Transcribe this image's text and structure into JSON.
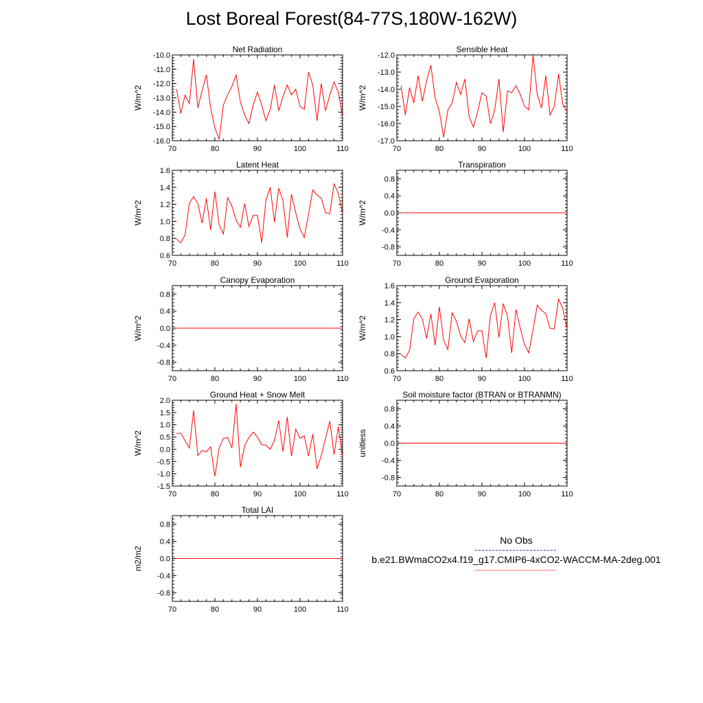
{
  "figure": {
    "title": "Lost Boreal Forest(84-77S,180W-162W)"
  },
  "legend": {
    "entries": [
      {
        "label": "No Obs",
        "color": "#3333aa",
        "dash": "dashed"
      },
      {
        "label": "b.e21.BWmaCO2x4.f19_g17.CMIP6-4xCO2-WACCM-MA-2deg.001",
        "color": "#ff0000",
        "dash": "solid"
      }
    ]
  },
  "colors": {
    "series": "#ff0000",
    "axis": "#000000"
  },
  "chart_data": [
    {
      "type": "line",
      "title": "Net Radiation",
      "ylabel": "W/m^2",
      "xlim": [
        70,
        110
      ],
      "ylim": [
        -16,
        -10
      ],
      "xticks": [
        70,
        80,
        90,
        100,
        110
      ],
      "yticks": [
        -16,
        -15,
        -14,
        -13,
        -12,
        -11,
        -10
      ],
      "ytick_labels": [
        "-16.0",
        "-15.0",
        "-14.0",
        "-13.0",
        "-12.0",
        "-11.0",
        "-10.0"
      ],
      "x_start": 71,
      "series": [
        {
          "values": [
            -12.4,
            -14.1,
            -12.8,
            -13.4,
            -10.3,
            -13.7,
            -12.5,
            -11.4,
            -13.7,
            -15.1,
            -15.9,
            -13.5,
            -12.8,
            -12.2,
            -11.4,
            -13.3,
            -14.2,
            -14.8,
            -13.5,
            -12.6,
            -13.5,
            -14.6,
            -13.8,
            -12.1,
            -13.9,
            -12.9,
            -12.1,
            -12.8,
            -12.4,
            -13.6,
            -13.8,
            -11.2,
            -12.1,
            -14.6,
            -12.0,
            -13.9,
            -12.8,
            -11.9,
            -12.6,
            -14.3
          ]
        }
      ]
    },
    {
      "type": "line",
      "title": "Sensible Heat",
      "ylabel": "W/m^2",
      "xlim": [
        70,
        110
      ],
      "ylim": [
        -17,
        -12
      ],
      "xticks": [
        70,
        80,
        90,
        100,
        110
      ],
      "yticks": [
        -17,
        -16,
        -15,
        -14,
        -13,
        -12
      ],
      "ytick_labels": [
        "-17.0",
        "-16.0",
        "-15.0",
        "-14.0",
        "-13.0",
        "-12.0"
      ],
      "x_start": 71,
      "series": [
        {
          "values": [
            -13.8,
            -15.5,
            -13.9,
            -14.8,
            -13.2,
            -14.7,
            -13.5,
            -12.6,
            -14.5,
            -15.3,
            -16.8,
            -15.2,
            -14.8,
            -13.6,
            -14.3,
            -13.4,
            -15.6,
            -16.2,
            -15.3,
            -14.2,
            -14.4,
            -16.0,
            -15.2,
            -13.4,
            -16.5,
            -14.1,
            -14.2,
            -13.8,
            -14.3,
            -15.0,
            -15.2,
            -12.0,
            -14.3,
            -15.1,
            -13.2,
            -15.5,
            -15.0,
            -13.1,
            -14.9,
            -15.3
          ]
        }
      ]
    },
    {
      "type": "line",
      "title": "Latent Heat",
      "ylabel": "W/m^2",
      "xlim": [
        70,
        110
      ],
      "ylim": [
        0.6,
        1.6
      ],
      "xticks": [
        70,
        80,
        90,
        100,
        110
      ],
      "yticks": [
        0.6,
        0.8,
        1.0,
        1.2,
        1.4,
        1.6
      ],
      "ytick_labels": [
        "0.6",
        "0.8",
        "1.0",
        "1.2",
        "1.4",
        "1.6"
      ],
      "x_start": 71,
      "series": [
        {
          "values": [
            0.79,
            0.75,
            0.84,
            1.21,
            1.29,
            1.21,
            0.98,
            1.27,
            0.9,
            1.35,
            0.96,
            0.85,
            1.28,
            1.18,
            1.01,
            0.93,
            1.21,
            0.94,
            1.07,
            1.07,
            0.75,
            1.25,
            1.4,
            0.99,
            1.39,
            1.24,
            0.81,
            1.32,
            1.1,
            0.91,
            0.81,
            1.08,
            1.37,
            1.31,
            1.27,
            1.1,
            1.09,
            1.44,
            1.33,
            1.09
          ]
        }
      ]
    },
    {
      "type": "line",
      "title": "Transpiration",
      "ylabel": "W/m^2",
      "xlim": [
        70,
        110
      ],
      "ylim": [
        -1,
        1
      ],
      "xticks": [
        70,
        80,
        90,
        100,
        110
      ],
      "yticks": [
        -0.8,
        -0.4,
        0.0,
        0.4,
        0.8
      ],
      "ytick_labels": [
        "-0.8",
        "-0.4",
        "0.0",
        "0.4",
        "0.8"
      ],
      "x_start": 71,
      "series": [
        {
          "values": [
            0,
            0,
            0,
            0,
            0,
            0,
            0,
            0,
            0,
            0,
            0,
            0,
            0,
            0,
            0,
            0,
            0,
            0,
            0,
            0,
            0,
            0,
            0,
            0,
            0,
            0,
            0,
            0,
            0,
            0,
            0,
            0,
            0,
            0,
            0,
            0,
            0,
            0,
            0,
            0
          ]
        }
      ]
    },
    {
      "type": "line",
      "title": "Canopy Evaporation",
      "ylabel": "W/m^2",
      "xlim": [
        70,
        110
      ],
      "ylim": [
        -1,
        1
      ],
      "xticks": [
        70,
        80,
        90,
        100,
        110
      ],
      "yticks": [
        -0.8,
        -0.4,
        0.0,
        0.4,
        0.8
      ],
      "ytick_labels": [
        "-0.8",
        "-0.4",
        "0.0",
        "0.4",
        "0.8"
      ],
      "x_start": 71,
      "series": [
        {
          "values": [
            0,
            0,
            0,
            0,
            0,
            0,
            0,
            0,
            0,
            0,
            0,
            0,
            0,
            0,
            0,
            0,
            0,
            0,
            0,
            0,
            0,
            0,
            0,
            0,
            0,
            0,
            0,
            0,
            0,
            0,
            0,
            0,
            0,
            0,
            0,
            0,
            0,
            0,
            0,
            0
          ]
        }
      ]
    },
    {
      "type": "line",
      "title": "Ground Evaporation",
      "ylabel": "W/m^2",
      "xlim": [
        70,
        110
      ],
      "ylim": [
        0.6,
        1.6
      ],
      "xticks": [
        70,
        80,
        90,
        100,
        110
      ],
      "yticks": [
        0.6,
        0.8,
        1.0,
        1.2,
        1.4,
        1.6
      ],
      "ytick_labels": [
        "0.6",
        "0.8",
        "1.0",
        "1.2",
        "1.4",
        "1.6"
      ],
      "x_start": 71,
      "series": [
        {
          "values": [
            0.79,
            0.75,
            0.84,
            1.21,
            1.29,
            1.21,
            0.98,
            1.27,
            0.9,
            1.35,
            0.96,
            0.85,
            1.28,
            1.18,
            1.01,
            0.93,
            1.21,
            0.94,
            1.07,
            1.07,
            0.75,
            1.25,
            1.4,
            0.99,
            1.39,
            1.24,
            0.81,
            1.32,
            1.1,
            0.91,
            0.81,
            1.08,
            1.37,
            1.31,
            1.27,
            1.1,
            1.09,
            1.44,
            1.33,
            1.09
          ]
        }
      ]
    },
    {
      "type": "line",
      "title": "Ground Heat + Snow Melt",
      "ylabel": "W/m^2",
      "xlim": [
        70,
        110
      ],
      "ylim": [
        -1.5,
        2.0
      ],
      "xticks": [
        70,
        80,
        90,
        100,
        110
      ],
      "yticks": [
        -1.5,
        -1.0,
        -0.5,
        0.0,
        0.5,
        1.0,
        1.5,
        2.0
      ],
      "ytick_labels": [
        "-1.5",
        "-1.0",
        "-0.5",
        "0.0",
        "0.5",
        "1.0",
        "1.5",
        "2.0"
      ],
      "x_start": 71,
      "series": [
        {
          "values": [
            0.65,
            0.65,
            0.35,
            0.05,
            1.58,
            -0.25,
            -0.05,
            -0.1,
            0.1,
            -1.1,
            0.05,
            0.45,
            0.47,
            0.05,
            1.85,
            -0.73,
            0.15,
            0.48,
            0.7,
            0.5,
            0.18,
            0.17,
            0.0,
            0.35,
            1.18,
            -0.1,
            1.32,
            -0.28,
            0.82,
            0.45,
            0.55,
            -0.27,
            0.62,
            -0.8,
            -0.25,
            0.45,
            1.15,
            -0.22,
            0.92,
            -0.3
          ]
        }
      ]
    },
    {
      "type": "line",
      "title": "Soil moisture factor (BTRAN or BTRANMN)",
      "ylabel": "unitless",
      "xlim": [
        70,
        110
      ],
      "ylim": [
        -1,
        1
      ],
      "xticks": [
        70,
        80,
        90,
        100,
        110
      ],
      "yticks": [
        -0.8,
        -0.4,
        0.0,
        0.4,
        0.8
      ],
      "ytick_labels": [
        "-0.8",
        "-0.4",
        "0.0",
        "0.4",
        "0.8"
      ],
      "x_start": 71,
      "series": [
        {
          "values": [
            0,
            0,
            0,
            0,
            0,
            0,
            0,
            0,
            0,
            0,
            0,
            0,
            0,
            0,
            0,
            0,
            0,
            0,
            0,
            0,
            0,
            0,
            0,
            0,
            0,
            0,
            0,
            0,
            0,
            0,
            0,
            0,
            0,
            0,
            0,
            0,
            0,
            0,
            0,
            0
          ]
        }
      ]
    },
    {
      "type": "line",
      "title": "Total LAI",
      "ylabel": "m2/m2",
      "xlim": [
        70,
        110
      ],
      "ylim": [
        -1,
        1
      ],
      "xticks": [
        70,
        80,
        90,
        100,
        110
      ],
      "yticks": [
        -0.8,
        -0.4,
        0.0,
        0.4,
        0.8
      ],
      "ytick_labels": [
        "-0.8",
        "-0.4",
        "0.0",
        "0.4",
        "0.8"
      ],
      "x_start": 71,
      "series": [
        {
          "values": [
            0,
            0,
            0,
            0,
            0,
            0,
            0,
            0,
            0,
            0,
            0,
            0,
            0,
            0,
            0,
            0,
            0,
            0,
            0,
            0,
            0,
            0,
            0,
            0,
            0,
            0,
            0,
            0,
            0,
            0,
            0,
            0,
            0,
            0,
            0,
            0,
            0,
            0,
            0,
            0
          ]
        }
      ]
    }
  ]
}
